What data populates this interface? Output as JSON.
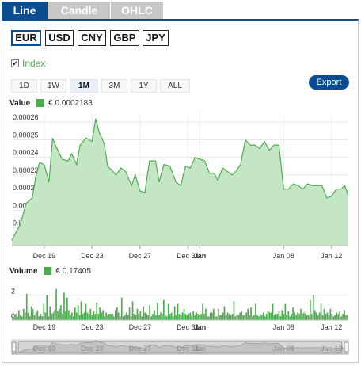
{
  "tabs": [
    {
      "label": "Line"
    },
    {
      "label": "Candle"
    },
    {
      "label": "OHLC"
    }
  ],
  "currencies": [
    "EUR",
    "USD",
    "CNY",
    "GBP",
    "JPY"
  ],
  "selected_currency": "EUR",
  "index_label": "Index",
  "ranges": [
    "1D",
    "1W",
    "1M",
    "3M",
    "1Y",
    "ALL"
  ],
  "selected_range": "1M",
  "export_label": "Export",
  "value_legend": {
    "name": "Value",
    "value": "€ 0.0002183"
  },
  "volume_legend": {
    "name": "Volume",
    "value": "€ 0.17405"
  },
  "colors": {
    "accent": "#0c4d92",
    "series": "#4cae4c",
    "fill": "#c5e6c5"
  },
  "chart_data": [
    {
      "type": "area",
      "name": "value",
      "title": "",
      "ylabel": "",
      "ylim": [
        0.00019,
        0.000265
      ],
      "y_ticks": [
        "0.00019",
        "0.00020",
        "0.00021",
        "0.00022",
        "0.00023",
        "0.00024",
        "0.00025",
        "0.00026"
      ],
      "x_tick_labels": [
        "Dec 19",
        "Dec 23",
        "Dec 27",
        "Dec 31",
        "Jan",
        "Jan 08",
        "Jan 12"
      ],
      "x_tick_days": [
        3,
        7,
        11,
        15,
        16,
        23,
        27
      ],
      "x_range_days": [
        0.3,
        28.4
      ],
      "grid": true,
      "x_days": [
        0.3,
        0.6,
        1,
        1.5,
        2,
        2.3,
        2.6,
        3,
        3.4,
        3.7,
        4,
        4.5,
        5,
        5.3,
        5.7,
        6,
        6.5,
        7,
        7.3,
        7.6,
        8,
        8.3,
        8.6,
        9,
        9.4,
        9.8,
        10.3,
        10.6,
        11,
        11.4,
        11.8,
        12.3,
        12.6,
        13,
        13.5,
        14,
        14.4,
        14.8,
        15.2,
        15.6,
        16,
        16.4,
        16.8,
        17.2,
        17.5,
        17.9,
        18.3,
        18.7,
        19,
        19.4,
        19.8,
        20.2,
        20.6,
        21,
        21.4,
        21.8,
        22.2,
        22.6,
        23,
        23.4,
        23.8,
        24.2,
        24.6,
        25,
        25.4,
        25.8,
        26.2,
        26.6,
        27,
        27.4,
        27.8,
        28.1,
        28.4
      ],
      "values": [
        0.000193,
        0.000197,
        0.000202,
        0.000214,
        0.000217,
        0.000229,
        0.000237,
        0.000236,
        0.000226,
        0.000251,
        0.000246,
        0.000239,
        0.000238,
        0.000242,
        0.000236,
        0.000247,
        0.000251,
        0.000249,
        0.000262,
        0.000254,
        0.000248,
        0.000235,
        0.000233,
        0.00023,
        0.000234,
        0.000232,
        0.000224,
        0.00023,
        0.000221,
        0.00022,
        0.000238,
        0.000238,
        0.000226,
        0.000236,
        0.000235,
        0.000226,
        0.000224,
        0.000235,
        0.000234,
        0.00024,
        0.000239,
        0.000238,
        0.000231,
        0.000231,
        0.000227,
        0.000234,
        0.000232,
        0.00023,
        0.000232,
        0.000236,
        0.00025,
        0.000247,
        0.000247,
        0.000245,
        0.000249,
        0.000244,
        0.000247,
        0.000247,
        0.000222,
        0.000222,
        0.000225,
        0.000224,
        0.000222,
        0.000225,
        0.000224,
        0.000224,
        0.000224,
        0.000217,
        0.000218,
        0.000222,
        0.000222,
        0.000224,
        0.0002183
      ]
    },
    {
      "type": "bar",
      "name": "volume",
      "title": "",
      "y_ticks": [
        "0",
        "2"
      ],
      "ylim": [
        0,
        3.3
      ],
      "x_tick_labels": [
        "Dec 19",
        "Dec 23",
        "Dec 27",
        "Dec 31",
        "Jan",
        "Jan 08",
        "Jan 12"
      ],
      "x_tick_days": [
        3,
        7,
        11,
        15,
        16,
        23,
        27
      ],
      "x_range_days": [
        0.3,
        28.4
      ],
      "bar_width_days": 0.11,
      "values": [
        0.3,
        0.2,
        0.5,
        0.3,
        0.8,
        0.4,
        0.3,
        0.9,
        0.6,
        2.1,
        0.6,
        0.3,
        1.1,
        0.9,
        0.4,
        0.6,
        0.8,
        0.3,
        0.5,
        0.3,
        1.3,
        0.6,
        2.0,
        0.3,
        1.1,
        0.5,
        0.6,
        0.8,
        2.5,
        0.7,
        0.9,
        1.2,
        0.5,
        2.2,
        0.7,
        1.8,
        0.8,
        0.4,
        0.6,
        0.3,
        1.0,
        0.6,
        1.2,
        0.4,
        1.5,
        0.5,
        0.6,
        1.3,
        0.6,
        0.5,
        0.9,
        0.4,
        0.7,
        0.5,
        1.4,
        0.5,
        1.0,
        0.6,
        0.8,
        0.3,
        0.6,
        0.4,
        0.5,
        0.5,
        0.5,
        0.3,
        0.8,
        1.0,
        0.6,
        0.3,
        1.8,
        0.3,
        0.4,
        0.6,
        0.4,
        1.0,
        0.3,
        1.5,
        0.5,
        0.4,
        0.9,
        0.5,
        0.7,
        0.3,
        1.1,
        0.6,
        0.5,
        0.4,
        1.2,
        0.3,
        0.5,
        0.8,
        0.4,
        1.4,
        0.4,
        0.6,
        0.5,
        1.6,
        0.4,
        0.3,
        1.3,
        0.5,
        0.6,
        0.3,
        1.1,
        0.4,
        1.3,
        0.5,
        0.4,
        0.6,
        0.9,
        0.5,
        0.4,
        0.5,
        0.6,
        0.3,
        0.7,
        0.4,
        0.6,
        0.5,
        0.4,
        0.5,
        1.3,
        0.5,
        0.9,
        0.3,
        0.3,
        0.6,
        0.6,
        0.9,
        0.3,
        0.3,
        0.9,
        0.4,
        0.4,
        0.6,
        1.1,
        0.4,
        0.6,
        0.5,
        0.4,
        0.5,
        1.5,
        0.3,
        0.4,
        0.4,
        0.6,
        0.7,
        0.4,
        0.4,
        0.6,
        0.9,
        0.4,
        1.0,
        0.3,
        0.4,
        1.3,
        0.4,
        0.3,
        0.5,
        0.4,
        0.6,
        0.3,
        0.5,
        0.7,
        0.6,
        0.6,
        1.3,
        0.4,
        0.5,
        0.5,
        0.7,
        0.3,
        0.8,
        0.5,
        1.3,
        0.4,
        0.7,
        0.3,
        0.5,
        1.0,
        0.6,
        0.4,
        0.6,
        0.5,
        0.9,
        0.5,
        0.6,
        0.5,
        0.4,
        0.4,
        1.6,
        0.5,
        2.0,
        0.8,
        0.6,
        0.4,
        0.6,
        1.3,
        0.4,
        0.9,
        0.5,
        0.6,
        0.4,
        0.9,
        0.5,
        0.3,
        0.4,
        0.6,
        0.5,
        0.7,
        0.3,
        0.5,
        0.8,
        0.4,
        0.4
      ]
    },
    {
      "type": "area",
      "name": "navigator",
      "x_tick_labels": [
        "Dec 19",
        "Dec 23",
        "Dec 27",
        "Dec 31",
        "Jan",
        "Jan 08",
        "Jan 12"
      ]
    }
  ]
}
